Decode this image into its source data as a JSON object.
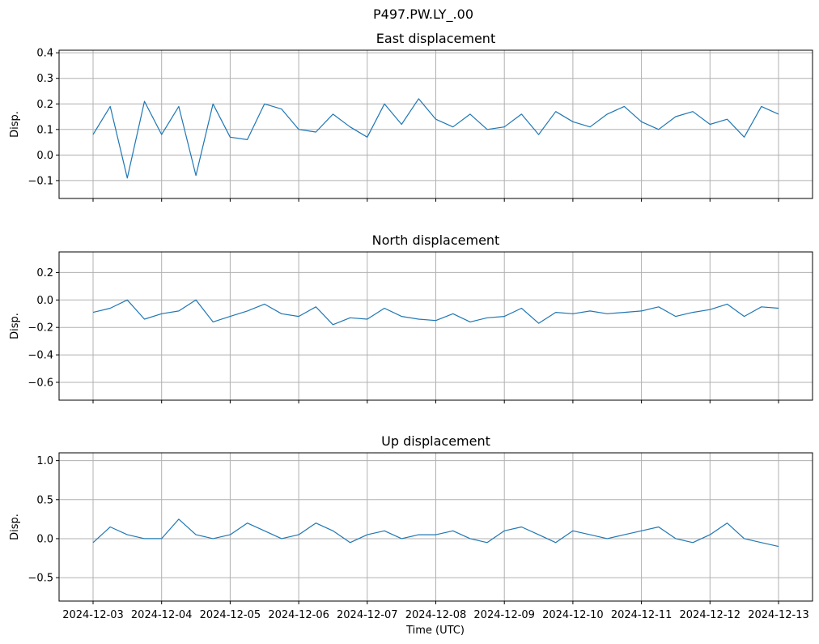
{
  "chart_data": {
    "type": "line",
    "suptitle": "P497.PW.LY_.00",
    "xlabel": "Time (UTC)",
    "x_ticks": [
      "2024-12-03",
      "2024-12-04",
      "2024-12-05",
      "2024-12-06",
      "2024-12-07",
      "2024-12-08",
      "2024-12-09",
      "2024-12-10",
      "2024-12-11",
      "2024-12-12",
      "2024-12-13"
    ],
    "x_range": [
      "2024-12-03",
      "2024-12-13"
    ],
    "grid": true,
    "line_color": "#1f77b4",
    "panels": [
      {
        "title": "East displacement",
        "ylabel": "Disp.",
        "ylim": [
          -0.17,
          0.41
        ],
        "yticks": [
          "0.4",
          "0.3",
          "0.2",
          "0.1",
          "0.0",
          "−0.1"
        ],
        "ytick_values": [
          0.4,
          0.3,
          0.2,
          0.1,
          0.0,
          -0.1
        ],
        "series": [
          {
            "x": [
              "2024-12-03 00:00",
              "2024-12-03 06:00",
              "2024-12-03 12:00",
              "2024-12-03 18:00",
              "2024-12-04 00:00",
              "2024-12-04 06:00",
              "2024-12-04 12:00",
              "2024-12-04 18:00",
              "2024-12-05 00:00",
              "2024-12-05 06:00",
              "2024-12-05 12:00",
              "2024-12-05 18:00",
              "2024-12-06 00:00",
              "2024-12-06 06:00",
              "2024-12-06 12:00",
              "2024-12-06 18:00",
              "2024-12-07 00:00",
              "2024-12-07 06:00",
              "2024-12-07 12:00",
              "2024-12-07 18:00",
              "2024-12-08 00:00",
              "2024-12-08 06:00",
              "2024-12-08 12:00",
              "2024-12-08 18:00",
              "2024-12-09 00:00",
              "2024-12-09 06:00",
              "2024-12-09 12:00",
              "2024-12-09 18:00",
              "2024-12-10 00:00",
              "2024-12-10 06:00",
              "2024-12-10 12:00",
              "2024-12-10 18:00",
              "2024-12-11 00:00",
              "2024-12-11 06:00",
              "2024-12-11 12:00",
              "2024-12-11 18:00",
              "2024-12-12 00:00",
              "2024-12-12 06:00",
              "2024-12-12 12:00",
              "2024-12-12 18:00",
              "2024-12-13 00:00"
            ],
            "values": [
              0.08,
              0.19,
              -0.09,
              0.21,
              0.08,
              0.19,
              -0.08,
              0.2,
              0.07,
              0.06,
              0.2,
              0.18,
              0.1,
              0.09,
              0.16,
              0.11,
              0.07,
              0.2,
              0.12,
              0.22,
              0.14,
              0.11,
              0.16,
              0.1,
              0.11,
              0.16,
              0.08,
              0.17,
              0.13,
              0.11,
              0.16,
              0.19,
              0.13,
              0.1,
              0.15,
              0.17,
              0.12,
              0.14,
              0.07,
              0.19,
              0.16
            ]
          }
        ]
      },
      {
        "title": "North displacement",
        "ylabel": "Disp.",
        "ylim": [
          -0.73,
          0.35
        ],
        "yticks": [
          "0.2",
          "0.0",
          "−0.2",
          "−0.4",
          "−0.6"
        ],
        "ytick_values": [
          0.2,
          0.0,
          -0.2,
          -0.4,
          -0.6
        ],
        "series": [
          {
            "x": [
              "2024-12-03 00:00",
              "2024-12-03 06:00",
              "2024-12-03 12:00",
              "2024-12-03 18:00",
              "2024-12-04 00:00",
              "2024-12-04 06:00",
              "2024-12-04 12:00",
              "2024-12-04 18:00",
              "2024-12-05 00:00",
              "2024-12-05 06:00",
              "2024-12-05 12:00",
              "2024-12-05 18:00",
              "2024-12-06 00:00",
              "2024-12-06 06:00",
              "2024-12-06 12:00",
              "2024-12-06 18:00",
              "2024-12-07 00:00",
              "2024-12-07 06:00",
              "2024-12-07 12:00",
              "2024-12-07 18:00",
              "2024-12-08 00:00",
              "2024-12-08 06:00",
              "2024-12-08 12:00",
              "2024-12-08 18:00",
              "2024-12-09 00:00",
              "2024-12-09 06:00",
              "2024-12-09 12:00",
              "2024-12-09 18:00",
              "2024-12-10 00:00",
              "2024-12-10 06:00",
              "2024-12-10 12:00",
              "2024-12-10 18:00",
              "2024-12-11 00:00",
              "2024-12-11 06:00",
              "2024-12-11 12:00",
              "2024-12-11 18:00",
              "2024-12-12 00:00",
              "2024-12-12 06:00",
              "2024-12-12 12:00",
              "2024-12-12 18:00",
              "2024-12-13 00:00"
            ],
            "values": [
              -0.09,
              -0.06,
              0.0,
              -0.14,
              -0.1,
              -0.08,
              0.0,
              -0.16,
              -0.12,
              -0.08,
              -0.03,
              -0.1,
              -0.12,
              -0.05,
              -0.18,
              -0.13,
              -0.14,
              -0.06,
              -0.12,
              -0.14,
              -0.15,
              -0.1,
              -0.16,
              -0.13,
              -0.12,
              -0.06,
              -0.17,
              -0.09,
              -0.1,
              -0.08,
              -0.1,
              -0.09,
              -0.08,
              -0.05,
              -0.12,
              -0.09,
              -0.07,
              -0.03,
              -0.12,
              -0.05,
              -0.06
            ]
          }
        ]
      },
      {
        "title": "Up displacement",
        "ylabel": "Disp.",
        "ylim": [
          -0.8,
          1.1
        ],
        "yticks": [
          "1.0",
          "0.5",
          "0.0",
          "−0.5"
        ],
        "ytick_values": [
          1.0,
          0.5,
          0.0,
          -0.5
        ],
        "series": [
          {
            "x": [
              "2024-12-03 00:00",
              "2024-12-03 06:00",
              "2024-12-03 12:00",
              "2024-12-03 18:00",
              "2024-12-04 00:00",
              "2024-12-04 06:00",
              "2024-12-04 12:00",
              "2024-12-04 18:00",
              "2024-12-05 00:00",
              "2024-12-05 06:00",
              "2024-12-05 12:00",
              "2024-12-05 18:00",
              "2024-12-06 00:00",
              "2024-12-06 06:00",
              "2024-12-06 12:00",
              "2024-12-06 18:00",
              "2024-12-07 00:00",
              "2024-12-07 06:00",
              "2024-12-07 12:00",
              "2024-12-07 18:00",
              "2024-12-08 00:00",
              "2024-12-08 06:00",
              "2024-12-08 12:00",
              "2024-12-08 18:00",
              "2024-12-09 00:00",
              "2024-12-09 06:00",
              "2024-12-09 12:00",
              "2024-12-09 18:00",
              "2024-12-10 00:00",
              "2024-12-10 06:00",
              "2024-12-10 12:00",
              "2024-12-10 18:00",
              "2024-12-11 00:00",
              "2024-12-11 06:00",
              "2024-12-11 12:00",
              "2024-12-11 18:00",
              "2024-12-12 00:00",
              "2024-12-12 06:00",
              "2024-12-12 12:00",
              "2024-12-12 18:00",
              "2024-12-13 00:00"
            ],
            "values": [
              -0.05,
              0.15,
              0.05,
              0.0,
              0.0,
              0.25,
              0.05,
              0.0,
              0.05,
              0.2,
              0.1,
              0.0,
              0.05,
              0.2,
              0.1,
              -0.05,
              0.05,
              0.1,
              0.0,
              0.05,
              0.05,
              0.1,
              0.0,
              -0.05,
              0.1,
              0.15,
              0.05,
              -0.05,
              0.1,
              0.05,
              0.0,
              0.05,
              0.1,
              0.15,
              0.0,
              -0.05,
              0.05,
              0.2,
              0.0,
              -0.05,
              -0.1
            ]
          }
        ]
      }
    ]
  }
}
